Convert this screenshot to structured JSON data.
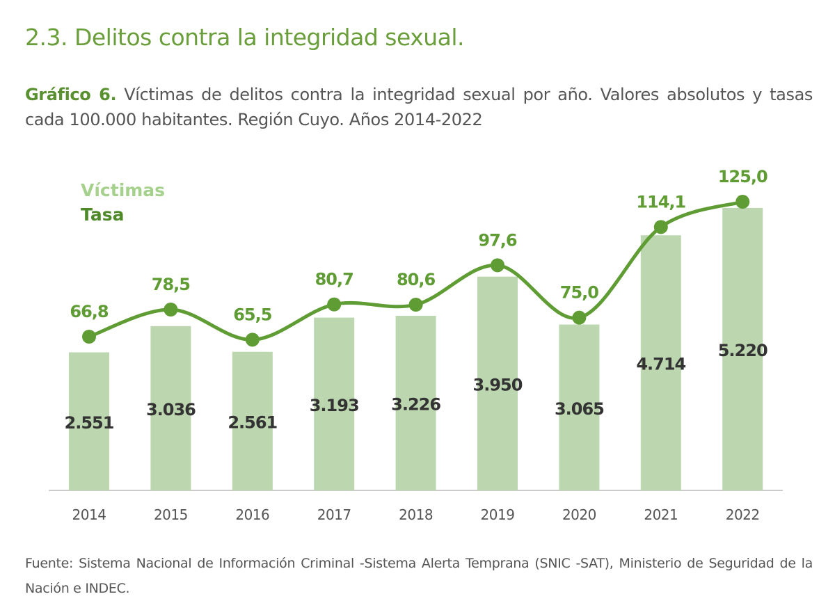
{
  "section_title": "2.3. Delitos contra la integridad sexual.",
  "caption": {
    "label": "Gráfico 6.",
    "text": "Víctimas de delitos contra la integridad sexual por año. Valores absolutos y tasas cada 100.000 habitantes. Región Cuyo. Años 2014-2022"
  },
  "source": "Fuente: Sistema Nacional de Información Criminal -Sistema Alerta Temprana (SNIC -SAT), Ministerio de Seguridad de la Nación e INDEC.",
  "colors": {
    "bar": "#bcd6b0",
    "line": "#5f9d34",
    "legend_victimas": "#a5d18c",
    "legend_tasa": "#4f8a2a"
  },
  "chart_data": {
    "type": "bar+line",
    "categories": [
      "2014",
      "2015",
      "2016",
      "2017",
      "2018",
      "2019",
      "2020",
      "2021",
      "2022"
    ],
    "series": [
      {
        "name": "Víctimas",
        "type": "bar",
        "values": [
          2551,
          3036,
          2561,
          3193,
          3226,
          3950,
          3065,
          4714,
          5220
        ],
        "labels": [
          "2.551",
          "3.036",
          "2.561",
          "3.193",
          "3.226",
          "3.950",
          "3.065",
          "4.714",
          "5.220"
        ]
      },
      {
        "name": "Tasa",
        "type": "line",
        "values": [
          66.8,
          78.5,
          65.5,
          80.7,
          80.6,
          97.6,
          75.0,
          114.1,
          125.0
        ],
        "labels": [
          "66,8",
          "78,5",
          "65,5",
          "80,7",
          "80,6",
          "97,6",
          "75,0",
          "114,1",
          "125,0"
        ]
      }
    ],
    "legend": [
      "Víctimas",
      "Tasa"
    ],
    "legend_position": "top-left",
    "grid": false
  }
}
